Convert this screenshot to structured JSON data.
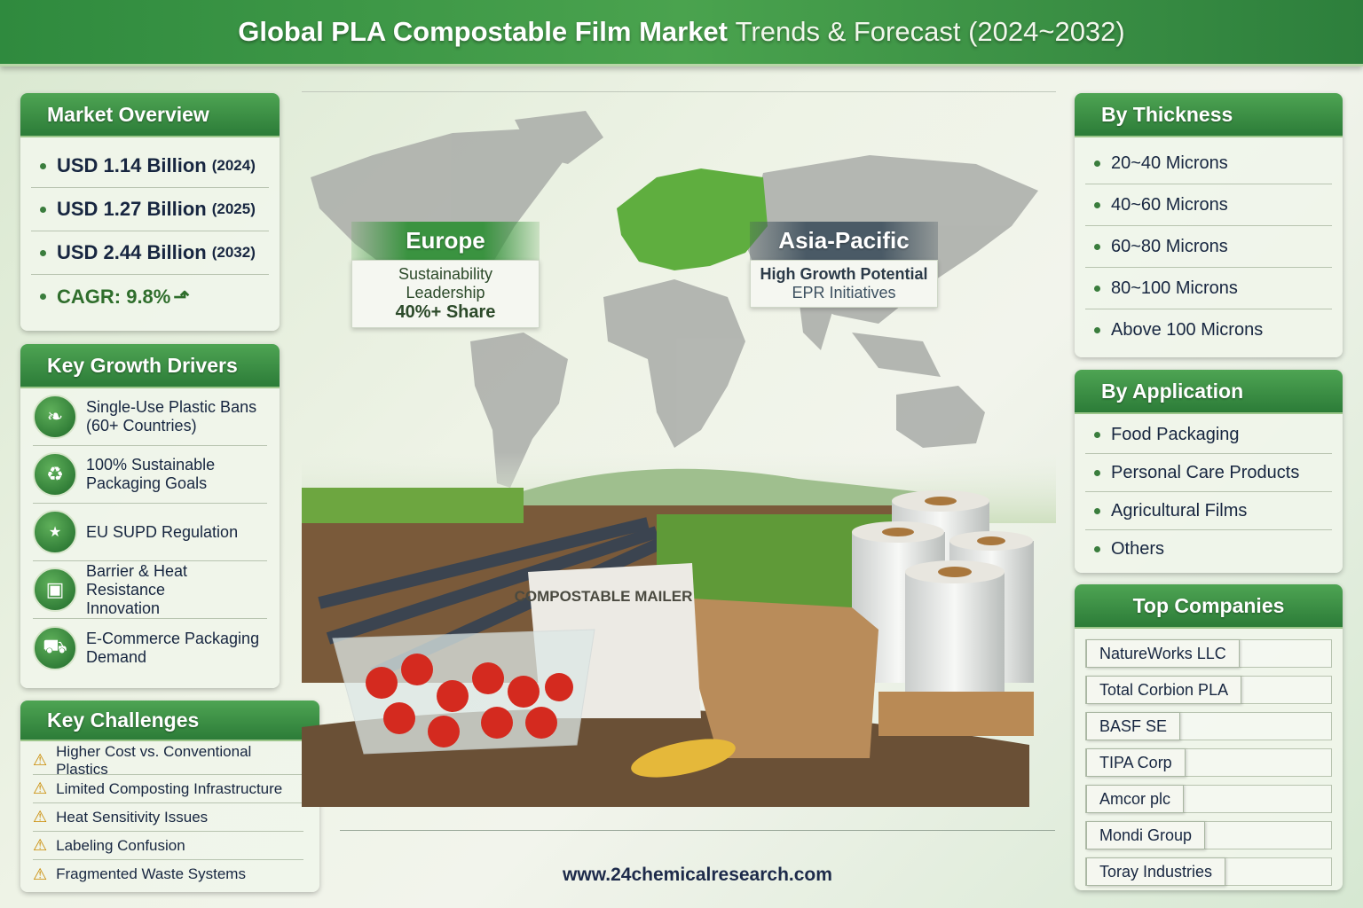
{
  "header": {
    "title_bold": "Global PLA Compostable Film Market",
    "title_light": "Trends & Forecast (2024~2032)"
  },
  "market_overview": {
    "title": "Market Overview",
    "items": [
      {
        "value": "USD 1.14 Billion",
        "year": "(2024)"
      },
      {
        "value": "USD 1.27 Billion",
        "year": "(2025)"
      },
      {
        "value": "USD 2.44 Billion",
        "year": "(2032)"
      }
    ],
    "cagr": "CAGR: 9.8%"
  },
  "growth_drivers": {
    "title": "Key Growth Drivers",
    "items": [
      {
        "icon": "leaf-icon",
        "line1": "Single-Use Plastic Bans",
        "line2": "(60+ Countries)"
      },
      {
        "icon": "recycle-icon",
        "line1": "100% Sustainable",
        "line2": "Packaging Goals"
      },
      {
        "icon": "eu-stars-icon",
        "line1": "EU SUPD Regulation",
        "line2": ""
      },
      {
        "icon": "package-icon",
        "line1": "Barrier & Heat Resistance",
        "line2": "Innovation"
      },
      {
        "icon": "truck-icon",
        "line1": "E-Commerce Packaging",
        "line2": "Demand"
      }
    ]
  },
  "challenges": {
    "title": "Key Challenges",
    "items": [
      "Higher Cost vs. Conventional Plastics",
      "Limited Composting Infrastructure",
      "Heat Sensitivity Issues",
      "Labeling Confusion",
      "Fragmented Waste Systems"
    ]
  },
  "map": {
    "europe": {
      "title": "Europe",
      "line1": "Sustainability Leadership",
      "line2": "40%+ Share",
      "color": "#4caf3f"
    },
    "asia": {
      "title": "Asia-Pacific",
      "line1": "High Growth Potential",
      "line2": "EPR Initiatives"
    }
  },
  "scene": {
    "mailer_label": "COMPOSTABLE MAILER"
  },
  "thickness": {
    "title": "By Thickness",
    "items": [
      "20~40 Microns",
      "40~60 Microns",
      "60~80 Microns",
      "80~100 Microns",
      "Above 100 Microns"
    ]
  },
  "application": {
    "title": "By Application",
    "items": [
      "Food Packaging",
      "Personal Care Products",
      "Agricultural Films",
      "Others"
    ]
  },
  "companies": {
    "title": "Top Companies",
    "items": [
      "NatureWorks LLC",
      "Total Corbion PLA",
      "BASF SE",
      "TIPA Corp",
      "Amcor plc",
      "Mondi Group",
      "Toray Industries"
    ]
  },
  "footer": {
    "url": "www.24chemicalresearch.com"
  }
}
